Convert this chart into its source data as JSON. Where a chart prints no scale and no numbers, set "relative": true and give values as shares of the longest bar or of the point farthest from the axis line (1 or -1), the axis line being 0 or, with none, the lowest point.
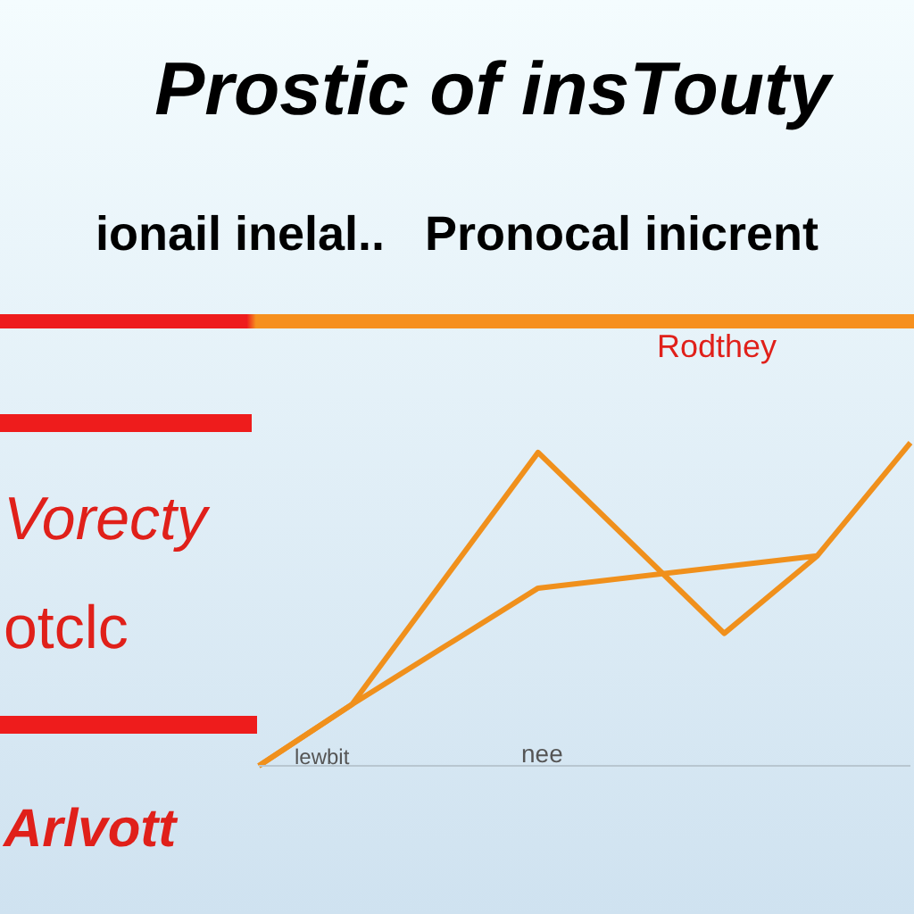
{
  "chart_data": {
    "type": "line",
    "title": "Prostic of insTouty",
    "subtitle": "ionail inelal..   Pronocal inicrent",
    "annotations": [
      "Rodthey",
      "Vorecty",
      "otclc",
      "Arlvott",
      "lewbit",
      "nee"
    ],
    "relative": true,
    "categories": [
      null,
      null,
      null,
      null,
      null,
      null,
      null,
      null
    ],
    "series": [
      {
        "color": "#f0901c",
        "values": [
          0,
          0.19,
          null,
          0.97,
          null,
          0.41,
          0.65,
          1
        ]
      },
      {
        "color": "#f0901c",
        "values": [
          0,
          0.19,
          0.37,
          0.55,
          null,
          null,
          0.65,
          null
        ]
      }
    ]
  }
}
